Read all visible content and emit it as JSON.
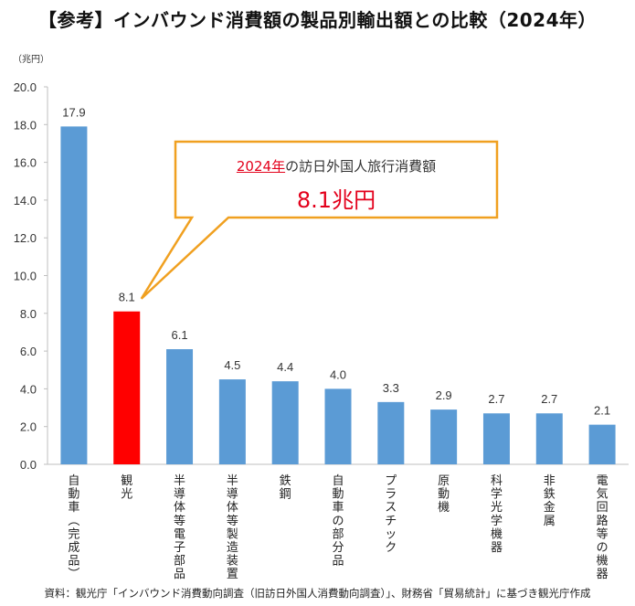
{
  "title": "【参考】インバウンド消費額の製品別輸出額との比較（2024年）",
  "unit": "（兆円）",
  "source": "資料：観光庁「インバウンド消費動向調査（旧訪日外国人消費動向調査）」、財務省「貿易統計」に基づき観光庁作成",
  "callout": {
    "year": "2024年",
    "text": "の訪日外国人旅行消費額",
    "value": "8.1兆円"
  },
  "colors": {
    "bar": "#5b9bd5",
    "highlight": "#ff0000",
    "callout_border": "#f0a020",
    "highlight_label": "#e3001b"
  },
  "chart_data": {
    "type": "bar",
    "title": "【参考】インバウンド消費額の製品別輸出額との比較（2024年）",
    "ylabel": "（兆円）",
    "xlabel": "",
    "ylim": [
      0,
      20
    ],
    "yticks": [
      "0.0",
      "2.0",
      "4.0",
      "6.0",
      "8.0",
      "10.0",
      "12.0",
      "14.0",
      "16.0",
      "18.0",
      "20.0"
    ],
    "categories": [
      "自動車（完成品）",
      "観光",
      "半導体等電子部品",
      "半導体等製造装置",
      "鉄鋼",
      "自動車の部分品",
      "プラスチック",
      "原動機",
      "科学光学機器",
      "非鉄金属",
      "電気回路等の機器"
    ],
    "values": [
      17.9,
      8.1,
      6.1,
      4.5,
      4.4,
      4.0,
      3.3,
      2.9,
      2.7,
      2.7,
      2.1
    ],
    "value_labels": [
      "17.9",
      "8.1",
      "6.1",
      "4.5",
      "4.4",
      "4.0",
      "3.3",
      "2.9",
      "2.7",
      "2.7",
      "2.1"
    ],
    "highlight_index": 1,
    "grid": false,
    "legend": "none"
  }
}
